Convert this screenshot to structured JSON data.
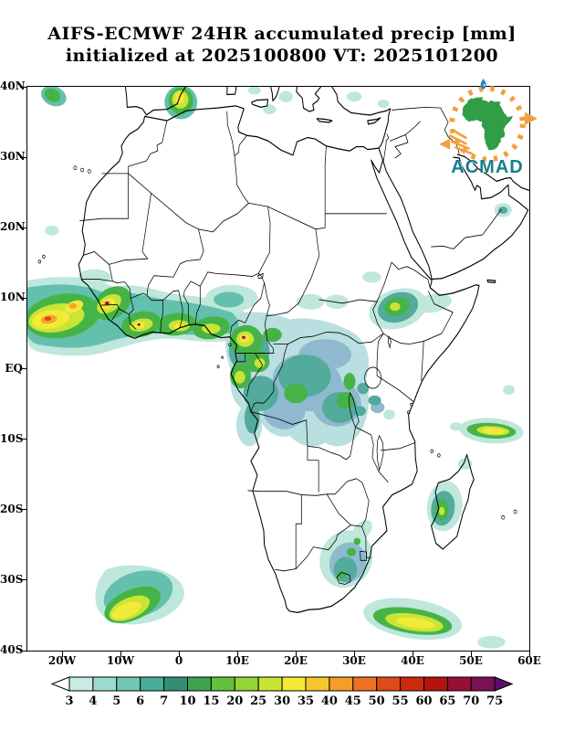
{
  "title": {
    "line1": "AIFS-ECMWF 24HR accumulated precip [mm]",
    "line2": "initialized at 2025100800 VT: 2025101200"
  },
  "axes": {
    "lat": [
      "40N",
      "30N",
      "20N",
      "10N",
      "EQ",
      "10S",
      "20S",
      "30S",
      "40S"
    ],
    "lon": [
      "20W",
      "10W",
      "0",
      "10E",
      "20E",
      "30E",
      "40E",
      "50E",
      "60E"
    ]
  },
  "colorbar": {
    "labels": [
      "3",
      "4",
      "5",
      "6",
      "7",
      "10",
      "15",
      "20",
      "25",
      "30",
      "35",
      "40",
      "45",
      "50",
      "55",
      "60",
      "65",
      "70",
      "75"
    ],
    "colors": [
      "#ffffff",
      "#c9ebe3",
      "#9cdccf",
      "#6fc7b6",
      "#47ae9a",
      "#338f72",
      "#3da34f",
      "#62c13d",
      "#93d437",
      "#c9e533",
      "#f4ea36",
      "#f6c62f",
      "#f69c28",
      "#ef7220",
      "#e04a18",
      "#cc2a10",
      "#b3130d",
      "#970f33",
      "#7c1054",
      "#5e0d6e"
    ]
  },
  "logo": {
    "wordmark": "ACMAD"
  },
  "colors": {
    "accent_orange": "#f2a03c",
    "logo_teal": "#157f8d",
    "logo_green": "#2f9e44",
    "drop_blue": "#2a7fc1",
    "frame": "#000000"
  }
}
